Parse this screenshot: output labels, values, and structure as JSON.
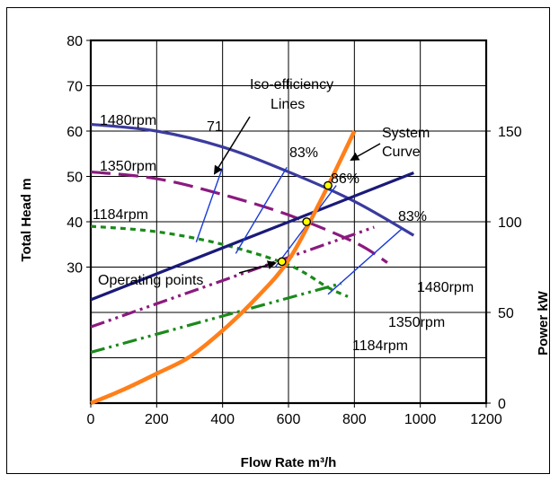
{
  "chart_data": {
    "type": "line",
    "xlabel": "Flow Rate m³/h",
    "ylabel_left": "Total Head m",
    "ylabel_right": "Power kW",
    "xlim": [
      0,
      1200
    ],
    "ylim_left": [
      0,
      80
    ],
    "ylim_right": [
      0,
      200
    ],
    "xticks": [
      "0",
      "200",
      "400",
      "600",
      "800",
      "1000",
      "1200"
    ],
    "yticks_left": [
      "80",
      "70",
      "60",
      "50",
      "40",
      "30"
    ],
    "yticks_right": [
      "150",
      "100",
      "50",
      "0"
    ],
    "grid": true,
    "head_curves": [
      {
        "name": "1480rpm",
        "color": "#3b3b9e",
        "dash": "solid",
        "x": [
          0,
          200,
          400,
          600,
          800,
          980
        ],
        "y": [
          61.5,
          60,
          56.5,
          51,
          44.5,
          37
        ]
      },
      {
        "name": "1350rpm",
        "color": "#8b1a7e",
        "dash": "long-dash",
        "x": [
          0,
          200,
          400,
          600,
          800,
          900
        ],
        "y": [
          51,
          49.5,
          46,
          41.5,
          35.5,
          31
        ]
      },
      {
        "name": "1184rpm",
        "color": "#1a8a1a",
        "dash": "short-dash",
        "x": [
          0,
          200,
          400,
          600,
          720,
          780
        ],
        "y": [
          39,
          37.8,
          35,
          30.5,
          25.5,
          23.5
        ]
      }
    ],
    "power_curves": [
      {
        "name": "1480rpm",
        "color": "#1a1a7a",
        "dash": "solid",
        "x": [
          0,
          980
        ],
        "y": [
          57,
          127
        ]
      },
      {
        "name": "1350rpm",
        "color": "#8b1a7e",
        "dash": "dash-dot-dot",
        "x": [
          0,
          860
        ],
        "y": [
          42,
          97
        ]
      },
      {
        "name": "1184rpm",
        "color": "#1a8a1a",
        "dash": "dash-dot-dot",
        "x": [
          0,
          760
        ],
        "y": [
          28,
          66
        ]
      }
    ],
    "system_curve": {
      "name": "System Curve",
      "color": "#ff7f1a",
      "x": [
        0,
        100,
        200,
        300,
        400,
        500,
        600,
        700,
        800
      ],
      "y": [
        0,
        3,
        6.5,
        10.2,
        16,
        23,
        31.5,
        45,
        60
      ]
    },
    "iso_efficiency_lines": [
      {
        "label": "71",
        "x": [
          320,
          400
        ],
        "y": [
          35.5,
          52
        ]
      },
      {
        "label": "83%",
        "x": [
          440,
          595
        ],
        "y": [
          33,
          52
        ]
      },
      {
        "label": "86%",
        "x": [
          560,
          745
        ],
        "y": [
          30,
          48
        ]
      },
      {
        "label": "83%",
        "x": [
          720,
          945
        ],
        "y": [
          24,
          38.5
        ]
      }
    ],
    "operating_points": [
      {
        "x": 580,
        "y": 31.2
      },
      {
        "x": 655,
        "y": 40
      },
      {
        "x": 720,
        "y": 48
      }
    ],
    "annotations": {
      "iso_title_line1": "Iso-efficiency",
      "iso_title_line2": "Lines",
      "system_line1": "System",
      "system_line2": "Curve",
      "operating_points": "Operating points",
      "eff_71": "71",
      "eff_83a": "83%",
      "eff_86": "86%",
      "eff_83b": "83%",
      "head_1480": "1480rpm",
      "head_1350": "1350rpm",
      "head_1184": "1184rpm",
      "power_1480": "1480rpm",
      "power_1350": "1350rpm",
      "power_1184": "1184rpm"
    }
  }
}
